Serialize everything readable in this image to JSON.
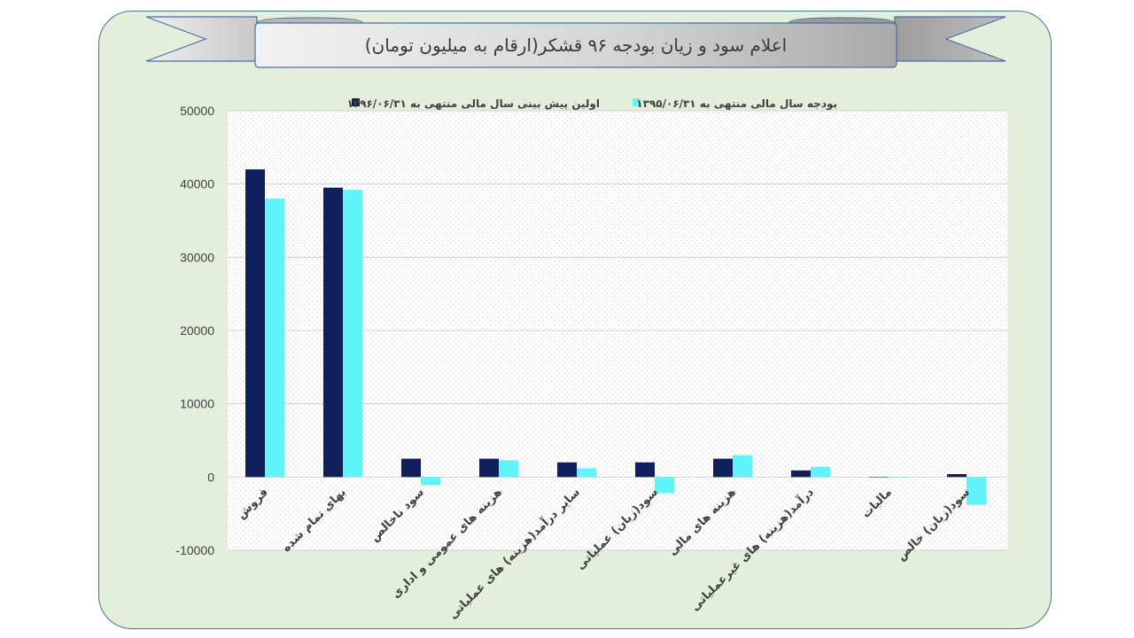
{
  "title": "اعلام سود و زیان بودجه ۹۶ قشکر(ارقام به میلیون تومان)",
  "colors": {
    "series1": "#0e1f5b",
    "series2": "#5ef4f9",
    "frame_bg": "#e4efdb",
    "frame_border": "#4a6fa5",
    "gridline": "#d0d0d0"
  },
  "chart_data": {
    "type": "bar",
    "categories": [
      "فروش",
      "بهای تمام شده",
      "سود ناخالص",
      "هزینه های عمومی و اداری",
      "سایر درآمد(هزینه) های عملیاتی",
      "سود(زیان) عملیاتی",
      "هزینه های مالی",
      "درآمد(هزینه) های غیرعملیاتی",
      "مالیات",
      "سود(زیان) خالص"
    ],
    "series": [
      {
        "name": "اولین پیش بینی سال مالی منتهی به ۱۳۹۶/۰۶/۳۱",
        "values": [
          42000,
          39500,
          2500,
          2500,
          2000,
          2000,
          2500,
          900,
          0,
          400
        ]
      },
      {
        "name": "بودجه سال مالی منتهی به ۱۳۹۵/۰۶/۳۱",
        "values": [
          38000,
          39200,
          -1100,
          2300,
          1200,
          -2200,
          3000,
          1400,
          0,
          -3800
        ]
      }
    ],
    "ylim": [
      -10000,
      50000
    ],
    "yticks": [
      "50000",
      "40000",
      "30000",
      "20000",
      "10000",
      "0",
      "-10000"
    ],
    "legend_position": "top",
    "grid": true
  }
}
